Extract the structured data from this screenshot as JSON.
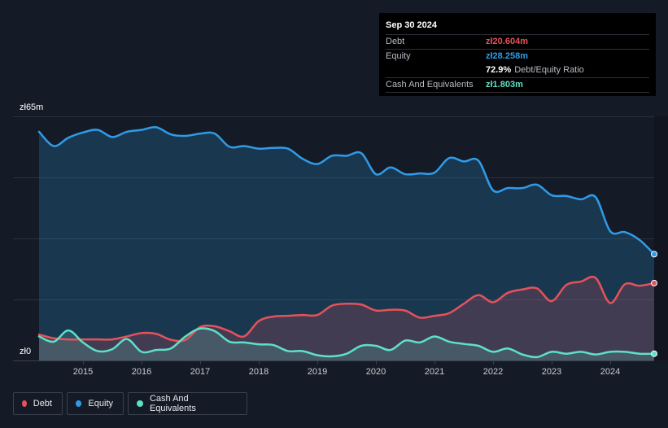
{
  "tooltip": {
    "date": "Sep 30 2024",
    "debt_label": "Debt",
    "debt_value": "zł20.604m",
    "equity_label": "Equity",
    "equity_value": "zł28.258m",
    "ratio_value": "72.9%",
    "ratio_label": "Debt/Equity Ratio",
    "cash_label": "Cash And Equivalents",
    "cash_value": "zł1.803m"
  },
  "legend": {
    "debt": "Debt",
    "equity": "Equity",
    "cash": "Cash And Equivalents"
  },
  "colors": {
    "debt": "#e5525a",
    "equity": "#2f9be8",
    "cash": "#5ee0c7"
  },
  "chart_data": {
    "type": "area",
    "title": "",
    "xlabel": "",
    "ylabel": "",
    "y_axis_labels": [
      "zł65m",
      "zł0"
    ],
    "ylim": [
      0,
      65
    ],
    "xlim": [
      2014.25,
      2024.75
    ],
    "x_tick_labels": [
      "2015",
      "2016",
      "2017",
      "2018",
      "2019",
      "2020",
      "2021",
      "2022",
      "2023",
      "2024"
    ],
    "x_ticks": [
      2015,
      2016,
      2017,
      2018,
      2019,
      2020,
      2021,
      2022,
      2023,
      2024
    ],
    "series": [
      {
        "name": "Equity",
        "key": "equity",
        "points": [
          [
            2014.25,
            60.9
          ],
          [
            2014.5,
            57.1
          ],
          [
            2014.75,
            59.3
          ],
          [
            2015.0,
            60.7
          ],
          [
            2015.25,
            61.4
          ],
          [
            2015.5,
            59.5
          ],
          [
            2015.75,
            60.9
          ],
          [
            2016.0,
            61.4
          ],
          [
            2016.25,
            62.1
          ],
          [
            2016.5,
            60.2
          ],
          [
            2016.75,
            59.8
          ],
          [
            2017.0,
            60.4
          ],
          [
            2017.25,
            60.4
          ],
          [
            2017.5,
            56.9
          ],
          [
            2017.75,
            57.1
          ],
          [
            2018.0,
            56.4
          ],
          [
            2018.25,
            56.6
          ],
          [
            2018.5,
            56.4
          ],
          [
            2018.75,
            53.7
          ],
          [
            2019.0,
            52.3
          ],
          [
            2019.25,
            54.5
          ],
          [
            2019.5,
            54.5
          ],
          [
            2019.75,
            55.2
          ],
          [
            2020.0,
            49.6
          ],
          [
            2020.25,
            51.4
          ],
          [
            2020.5,
            49.6
          ],
          [
            2020.75,
            49.8
          ],
          [
            2021.0,
            50.0
          ],
          [
            2021.25,
            53.9
          ],
          [
            2021.5,
            53.0
          ],
          [
            2021.75,
            53.2
          ],
          [
            2022.0,
            45.3
          ],
          [
            2022.25,
            45.9
          ],
          [
            2022.5,
            45.9
          ],
          [
            2022.75,
            46.8
          ],
          [
            2023.0,
            44.0
          ],
          [
            2023.25,
            43.8
          ],
          [
            2023.5,
            42.9
          ],
          [
            2023.75,
            43.5
          ],
          [
            2024.0,
            34.4
          ],
          [
            2024.25,
            34.2
          ],
          [
            2024.5,
            32.1
          ],
          [
            2024.75,
            28.3
          ]
        ]
      },
      {
        "name": "Debt",
        "key": "debt",
        "points": [
          [
            2014.25,
            6.9
          ],
          [
            2014.5,
            5.9
          ],
          [
            2014.75,
            5.6
          ],
          [
            2015.0,
            5.6
          ],
          [
            2015.25,
            5.6
          ],
          [
            2015.5,
            5.6
          ],
          [
            2015.75,
            6.4
          ],
          [
            2016.0,
            7.3
          ],
          [
            2016.25,
            7.1
          ],
          [
            2016.5,
            5.5
          ],
          [
            2016.75,
            5.5
          ],
          [
            2017.0,
            8.9
          ],
          [
            2017.25,
            9.1
          ],
          [
            2017.5,
            7.8
          ],
          [
            2017.75,
            6.4
          ],
          [
            2018.0,
            10.5
          ],
          [
            2018.25,
            11.7
          ],
          [
            2018.5,
            11.9
          ],
          [
            2018.75,
            12.1
          ],
          [
            2019.0,
            12.1
          ],
          [
            2019.25,
            14.6
          ],
          [
            2019.5,
            15.1
          ],
          [
            2019.75,
            14.9
          ],
          [
            2020.0,
            13.3
          ],
          [
            2020.25,
            13.5
          ],
          [
            2020.5,
            13.3
          ],
          [
            2020.75,
            11.4
          ],
          [
            2021.0,
            11.9
          ],
          [
            2021.25,
            12.6
          ],
          [
            2021.5,
            15.1
          ],
          [
            2021.75,
            17.4
          ],
          [
            2022.0,
            15.5
          ],
          [
            2022.25,
            18.0
          ],
          [
            2022.5,
            18.9
          ],
          [
            2022.75,
            19.2
          ],
          [
            2023.0,
            15.8
          ],
          [
            2023.25,
            20.1
          ],
          [
            2023.5,
            21.0
          ],
          [
            2023.75,
            22.0
          ],
          [
            2024.0,
            15.3
          ],
          [
            2024.25,
            20.3
          ],
          [
            2024.5,
            19.9
          ],
          [
            2024.75,
            20.6
          ]
        ]
      },
      {
        "name": "Cash And Equivalents",
        "key": "cash",
        "points": [
          [
            2014.25,
            6.4
          ],
          [
            2014.5,
            5.0
          ],
          [
            2014.75,
            8.0
          ],
          [
            2015.0,
            4.8
          ],
          [
            2015.25,
            2.5
          ],
          [
            2015.5,
            3.0
          ],
          [
            2015.75,
            5.7
          ],
          [
            2016.0,
            2.3
          ],
          [
            2016.25,
            2.8
          ],
          [
            2016.5,
            3.2
          ],
          [
            2016.75,
            6.4
          ],
          [
            2017.0,
            8.5
          ],
          [
            2017.25,
            7.8
          ],
          [
            2017.5,
            5.0
          ],
          [
            2017.75,
            4.8
          ],
          [
            2018.0,
            4.3
          ],
          [
            2018.25,
            4.1
          ],
          [
            2018.5,
            2.5
          ],
          [
            2018.75,
            2.5
          ],
          [
            2019.0,
            1.4
          ],
          [
            2019.25,
            1.1
          ],
          [
            2019.5,
            1.8
          ],
          [
            2019.75,
            3.9
          ],
          [
            2020.0,
            3.9
          ],
          [
            2020.25,
            2.8
          ],
          [
            2020.5,
            5.3
          ],
          [
            2020.75,
            4.8
          ],
          [
            2021.0,
            6.4
          ],
          [
            2021.25,
            5.0
          ],
          [
            2021.5,
            4.4
          ],
          [
            2021.75,
            3.9
          ],
          [
            2022.0,
            2.3
          ],
          [
            2022.25,
            3.2
          ],
          [
            2022.5,
            1.6
          ],
          [
            2022.75,
            0.9
          ],
          [
            2023.0,
            2.3
          ],
          [
            2023.25,
            1.8
          ],
          [
            2023.5,
            2.3
          ],
          [
            2023.75,
            1.6
          ],
          [
            2024.0,
            2.3
          ],
          [
            2024.25,
            2.3
          ],
          [
            2024.5,
            1.8
          ],
          [
            2024.75,
            1.8
          ]
        ]
      }
    ],
    "grid": true,
    "legend_position": "bottom-left"
  }
}
